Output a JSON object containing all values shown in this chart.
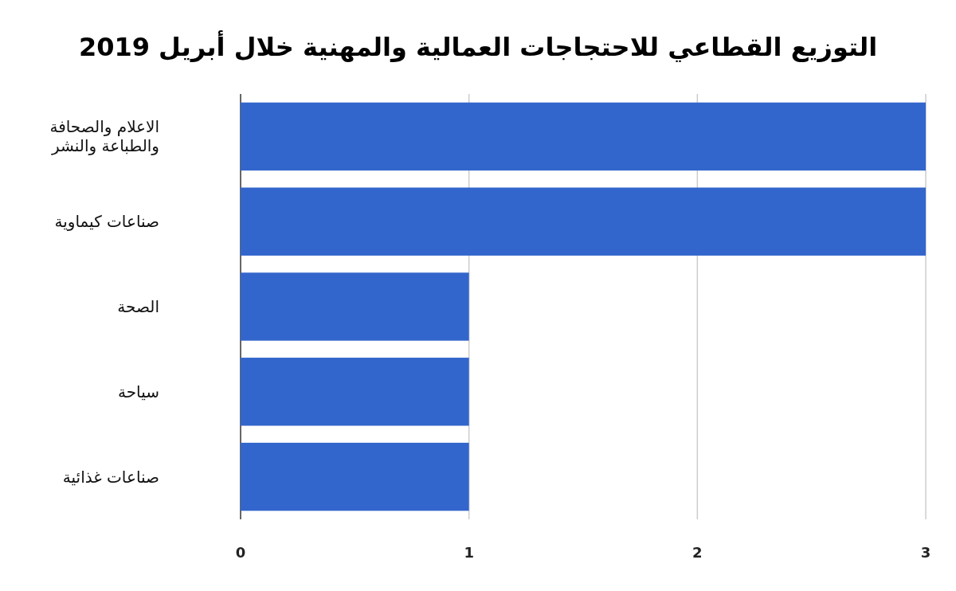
{
  "chart_data": {
    "type": "bar",
    "orientation": "horizontal",
    "title": "التوزيع القطاعي للاحتجاجات العمالية والمهنية خلال أبريل 2019",
    "categories": [
      "الاعلام والصحافة والطباعة والنشر",
      "صناعات كيماوية",
      "الصحة",
      "سياحة",
      "صناعات غذائية"
    ],
    "values": [
      3,
      3,
      1,
      1,
      1
    ],
    "color": "#3366cc",
    "xlim": [
      0,
      3
    ],
    "xticks": [
      0,
      1,
      2,
      3
    ],
    "grid": "x"
  }
}
